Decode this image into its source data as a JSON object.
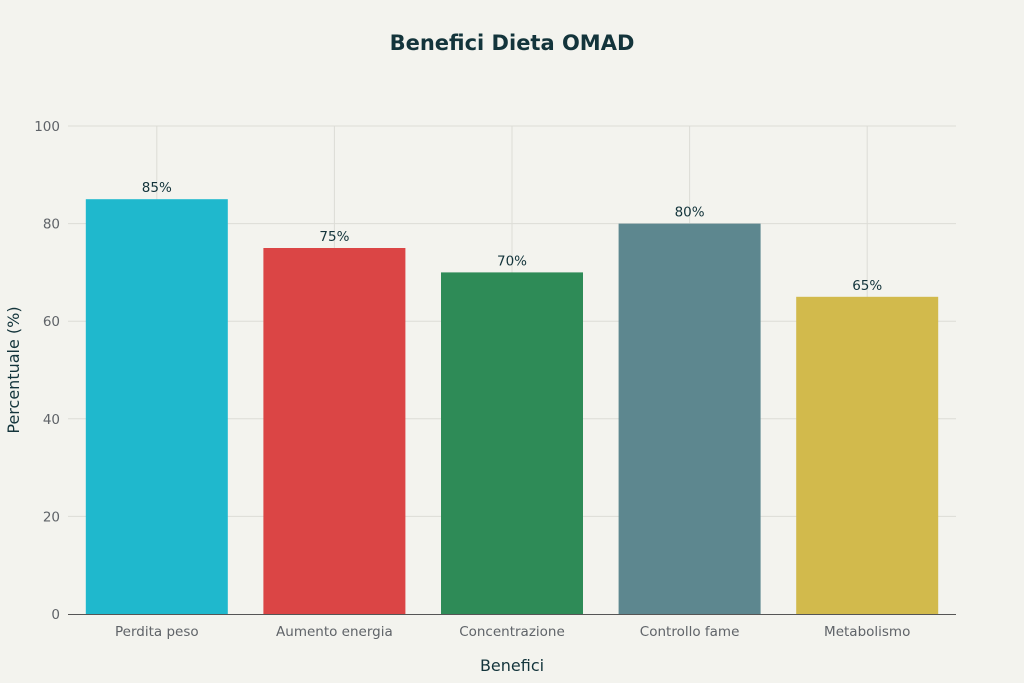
{
  "chart_data": {
    "type": "bar",
    "title": "Benefici Dieta OMAD",
    "xlabel": "Benefici",
    "ylabel": "Percentuale (%)",
    "categories": [
      "Perdita peso",
      "Aumento energia",
      "Concentrazione",
      "Controllo fame",
      "Metabolismo"
    ],
    "values": [
      85,
      75,
      70,
      80,
      65
    ],
    "data_labels": [
      "85%",
      "75%",
      "70%",
      "80%",
      "65%"
    ],
    "colors": [
      "#1FB8CD",
      "#DB4545",
      "#2E8B57",
      "#5D878F",
      "#D2BA4C"
    ],
    "ylim": [
      0,
      100
    ],
    "yticks": [
      0,
      20,
      40,
      60,
      80,
      100
    ],
    "grid": true,
    "legend": "none"
  }
}
